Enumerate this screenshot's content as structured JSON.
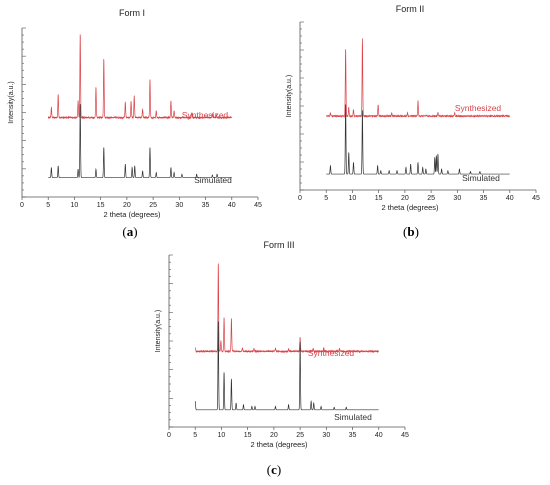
{
  "colors": {
    "synthesized": "#d9434a",
    "simulated": "#333333",
    "axis": "#555555"
  },
  "chart_data": [
    {
      "type": "line",
      "panel_label": "a",
      "title": "Form I",
      "xlabel": "2 theta (degrees)",
      "ylabel": "Intensity(a.u.)",
      "xlim": [
        0,
        45
      ],
      "xticks": [
        0,
        5,
        10,
        15,
        20,
        25,
        30,
        35,
        40,
        45
      ],
      "x_range": [
        5,
        40
      ],
      "series": [
        {
          "name": "Synthesized",
          "baseline": 0.47,
          "noise": 0.008,
          "peaks": [
            [
              5.6,
              0.06
            ],
            [
              6.9,
              0.14
            ],
            [
              10.7,
              0.1
            ],
            [
              11.1,
              0.5
            ],
            [
              14.1,
              0.18
            ],
            [
              15.6,
              0.35
            ],
            [
              19.7,
              0.09
            ],
            [
              20.8,
              0.1
            ],
            [
              21.4,
              0.13
            ],
            [
              23.0,
              0.05
            ],
            [
              24.4,
              0.23
            ],
            [
              25.6,
              0.04
            ],
            [
              28.4,
              0.1
            ],
            [
              29.0,
              0.04
            ],
            [
              32.4,
              0.03
            ],
            [
              36.3,
              0.02
            ],
            [
              37.0,
              0.02
            ]
          ]
        },
        {
          "name": "Simulated",
          "baseline": 0.115,
          "noise": 0.0,
          "peaks": [
            [
              5.6,
              0.06
            ],
            [
              6.9,
              0.07
            ],
            [
              10.7,
              0.05
            ],
            [
              11.1,
              0.44
            ],
            [
              14.1,
              0.05
            ],
            [
              15.6,
              0.18
            ],
            [
              19.7,
              0.08
            ],
            [
              21.0,
              0.06
            ],
            [
              21.5,
              0.07
            ],
            [
              23.0,
              0.04
            ],
            [
              24.4,
              0.18
            ],
            [
              25.6,
              0.03
            ],
            [
              28.4,
              0.06
            ],
            [
              29.0,
              0.03
            ],
            [
              30.5,
              0.02
            ],
            [
              33.3,
              0.02
            ],
            [
              36.3,
              0.015
            ],
            [
              37.2,
              0.02
            ]
          ]
        }
      ]
    },
    {
      "type": "line",
      "panel_label": "b",
      "title": "Form II",
      "xlabel": "2 theta (degrees)",
      "ylabel": "Intensity(a.u.)",
      "xlim": [
        0,
        45
      ],
      "xticks": [
        0,
        5,
        10,
        15,
        20,
        25,
        30,
        35,
        40,
        45
      ],
      "x_range": [
        5,
        40
      ],
      "series": [
        {
          "name": "Synthesized",
          "baseline": 0.44,
          "noise": 0.008,
          "peaks": [
            [
              5.8,
              0.02
            ],
            [
              8.7,
              0.4
            ],
            [
              9.3,
              0.05
            ],
            [
              10.2,
              0.04
            ],
            [
              11.9,
              0.46
            ],
            [
              14.9,
              0.07
            ],
            [
              17.5,
              0.02
            ],
            [
              20.5,
              0.02
            ],
            [
              22.5,
              0.09
            ],
            [
              26.3,
              0.02
            ],
            [
              29.5,
              0.02
            ]
          ]
        },
        {
          "name": "Simulated",
          "baseline": 0.095,
          "noise": 0.0,
          "peaks": [
            [
              5.8,
              0.05
            ],
            [
              8.7,
              0.42
            ],
            [
              9.3,
              0.13
            ],
            [
              10.2,
              0.07
            ],
            [
              11.9,
              0.38
            ],
            [
              14.8,
              0.05
            ],
            [
              15.4,
              0.02
            ],
            [
              17.0,
              0.02
            ],
            [
              18.5,
              0.02
            ],
            [
              20.2,
              0.04
            ],
            [
              21.1,
              0.06
            ],
            [
              22.5,
              0.07
            ],
            [
              23.4,
              0.04
            ],
            [
              24.0,
              0.03
            ],
            [
              25.7,
              0.1
            ],
            [
              26.0,
              0.11
            ],
            [
              26.3,
              0.12
            ],
            [
              27.0,
              0.03
            ],
            [
              28.2,
              0.02
            ],
            [
              30.4,
              0.03
            ],
            [
              32.5,
              0.015
            ],
            [
              34.3,
              0.015
            ]
          ]
        }
      ]
    },
    {
      "type": "line",
      "panel_label": "c",
      "title": "Form III",
      "xlabel": "2 theta (degrees)",
      "ylabel": "Intensity(a.u.)",
      "xlim": [
        0,
        45
      ],
      "xticks": [
        0,
        5,
        10,
        15,
        20,
        25,
        30,
        35,
        40,
        45
      ],
      "x_range": [
        5,
        40
      ],
      "series": [
        {
          "name": "Synthesized",
          "baseline": 0.44,
          "noise": 0.008,
          "peaks": [
            [
              5.0,
              0.02
            ],
            [
              9.4,
              0.52
            ],
            [
              9.9,
              0.06
            ],
            [
              10.5,
              0.2
            ],
            [
              11.9,
              0.19
            ],
            [
              14.0,
              0.02
            ],
            [
              16.2,
              0.015
            ],
            [
              20.3,
              0.015
            ],
            [
              22.8,
              0.015
            ],
            [
              25.0,
              0.08
            ],
            [
              27.5,
              0.015
            ],
            [
              29.5,
              0.02
            ],
            [
              32.5,
              0.015
            ]
          ]
        },
        {
          "name": "Simulated",
          "baseline": 0.1,
          "noise": 0.0,
          "peaks": [
            [
              5.0,
              0.05
            ],
            [
              9.4,
              0.52
            ],
            [
              10.5,
              0.22
            ],
            [
              11.9,
              0.18
            ],
            [
              12.8,
              0.04
            ],
            [
              14.2,
              0.03
            ],
            [
              15.8,
              0.02
            ],
            [
              16.4,
              0.02
            ],
            [
              20.3,
              0.02
            ],
            [
              22.8,
              0.03
            ],
            [
              25.0,
              0.4
            ],
            [
              27.1,
              0.05
            ],
            [
              27.6,
              0.04
            ],
            [
              29.0,
              0.02
            ],
            [
              31.5,
              0.015
            ],
            [
              33.8,
              0.015
            ]
          ]
        }
      ]
    }
  ]
}
